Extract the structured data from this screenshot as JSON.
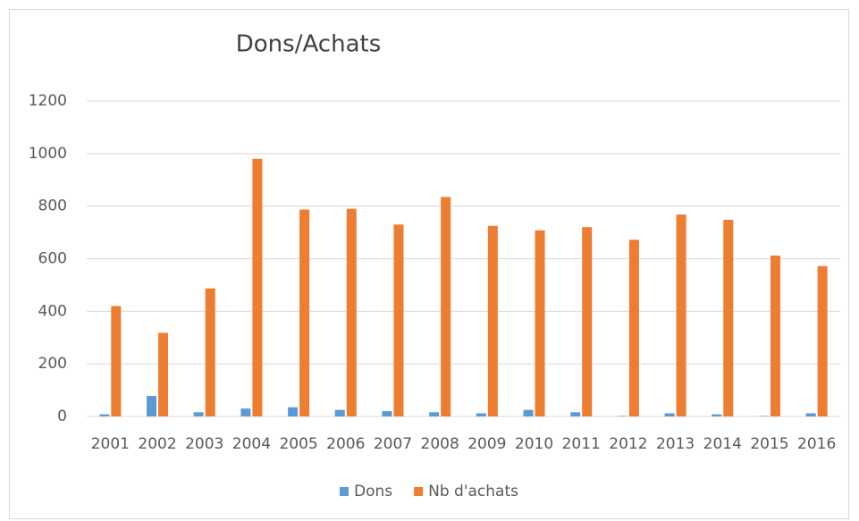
{
  "chart_data": {
    "type": "bar",
    "title": "Dons/Achats",
    "categories": [
      "2001",
      "2002",
      "2003",
      "2004",
      "2005",
      "2006",
      "2007",
      "2008",
      "2009",
      "2010",
      "2011",
      "2012",
      "2013",
      "2014",
      "2015",
      "2016"
    ],
    "series": [
      {
        "name": "Dons",
        "color": "#5b9bd5",
        "values": [
          8,
          78,
          16,
          30,
          35,
          25,
          20,
          16,
          12,
          25,
          16,
          2,
          12,
          8,
          2,
          12
        ]
      },
      {
        "name": "Nb d'achats",
        "color": "#ed7d31",
        "values": [
          420,
          318,
          487,
          980,
          787,
          790,
          730,
          835,
          725,
          708,
          720,
          672,
          768,
          748,
          612,
          572
        ]
      }
    ],
    "ylim": [
      0,
      1200
    ],
    "yticks": [
      0,
      200,
      400,
      600,
      800,
      1000,
      1200
    ],
    "grid": true,
    "legend": "bottom"
  }
}
